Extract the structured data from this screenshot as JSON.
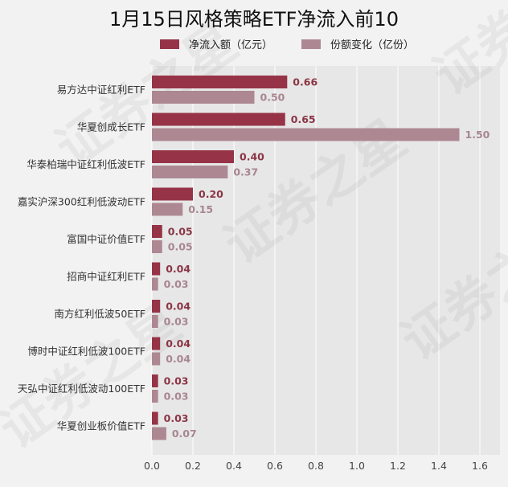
{
  "chart_data": {
    "type": "bar",
    "orientation": "horizontal",
    "title": "1月15日风格策略ETF净流入前10",
    "categories": [
      "易方达中证红利ETF",
      "华夏创成长ETF",
      "华泰柏瑞中证红利低波ETF",
      "嘉实沪深300红利低波动ETF",
      "富国中证价值ETF",
      "招商中证红利ETF",
      "南方红利低波50ETF",
      "博时中证红利低波100ETF",
      "天弘中证红利低波动100ETF",
      "华夏创业板价值ETF"
    ],
    "series": [
      {
        "name": "净流入额（亿元）",
        "color": "#963346",
        "values": [
          0.66,
          0.65,
          0.4,
          0.2,
          0.05,
          0.04,
          0.04,
          0.04,
          0.03,
          0.03
        ],
        "labels": [
          "0.66",
          "0.65",
          "0.40",
          "0.20",
          "0.05",
          "0.04",
          "0.04",
          "0.04",
          "0.03",
          "0.03"
        ]
      },
      {
        "name": "份额变化（亿份）",
        "color": "#ad8893",
        "values": [
          0.5,
          1.5,
          0.37,
          0.15,
          0.05,
          0.03,
          0.03,
          0.04,
          0.03,
          0.07
        ],
        "labels": [
          "0.50",
          "1.50",
          "0.37",
          "0.15",
          "0.05",
          "0.03",
          "0.03",
          "0.04",
          "0.03",
          "0.07"
        ]
      }
    ],
    "xlim": [
      0,
      1.7
    ],
    "xticks": [
      "0.0",
      "0.2",
      "0.4",
      "0.6",
      "0.8",
      "1.0",
      "1.2",
      "1.4",
      "1.6"
    ],
    "grid": true,
    "legend": "top"
  },
  "watermark": "证券之星"
}
